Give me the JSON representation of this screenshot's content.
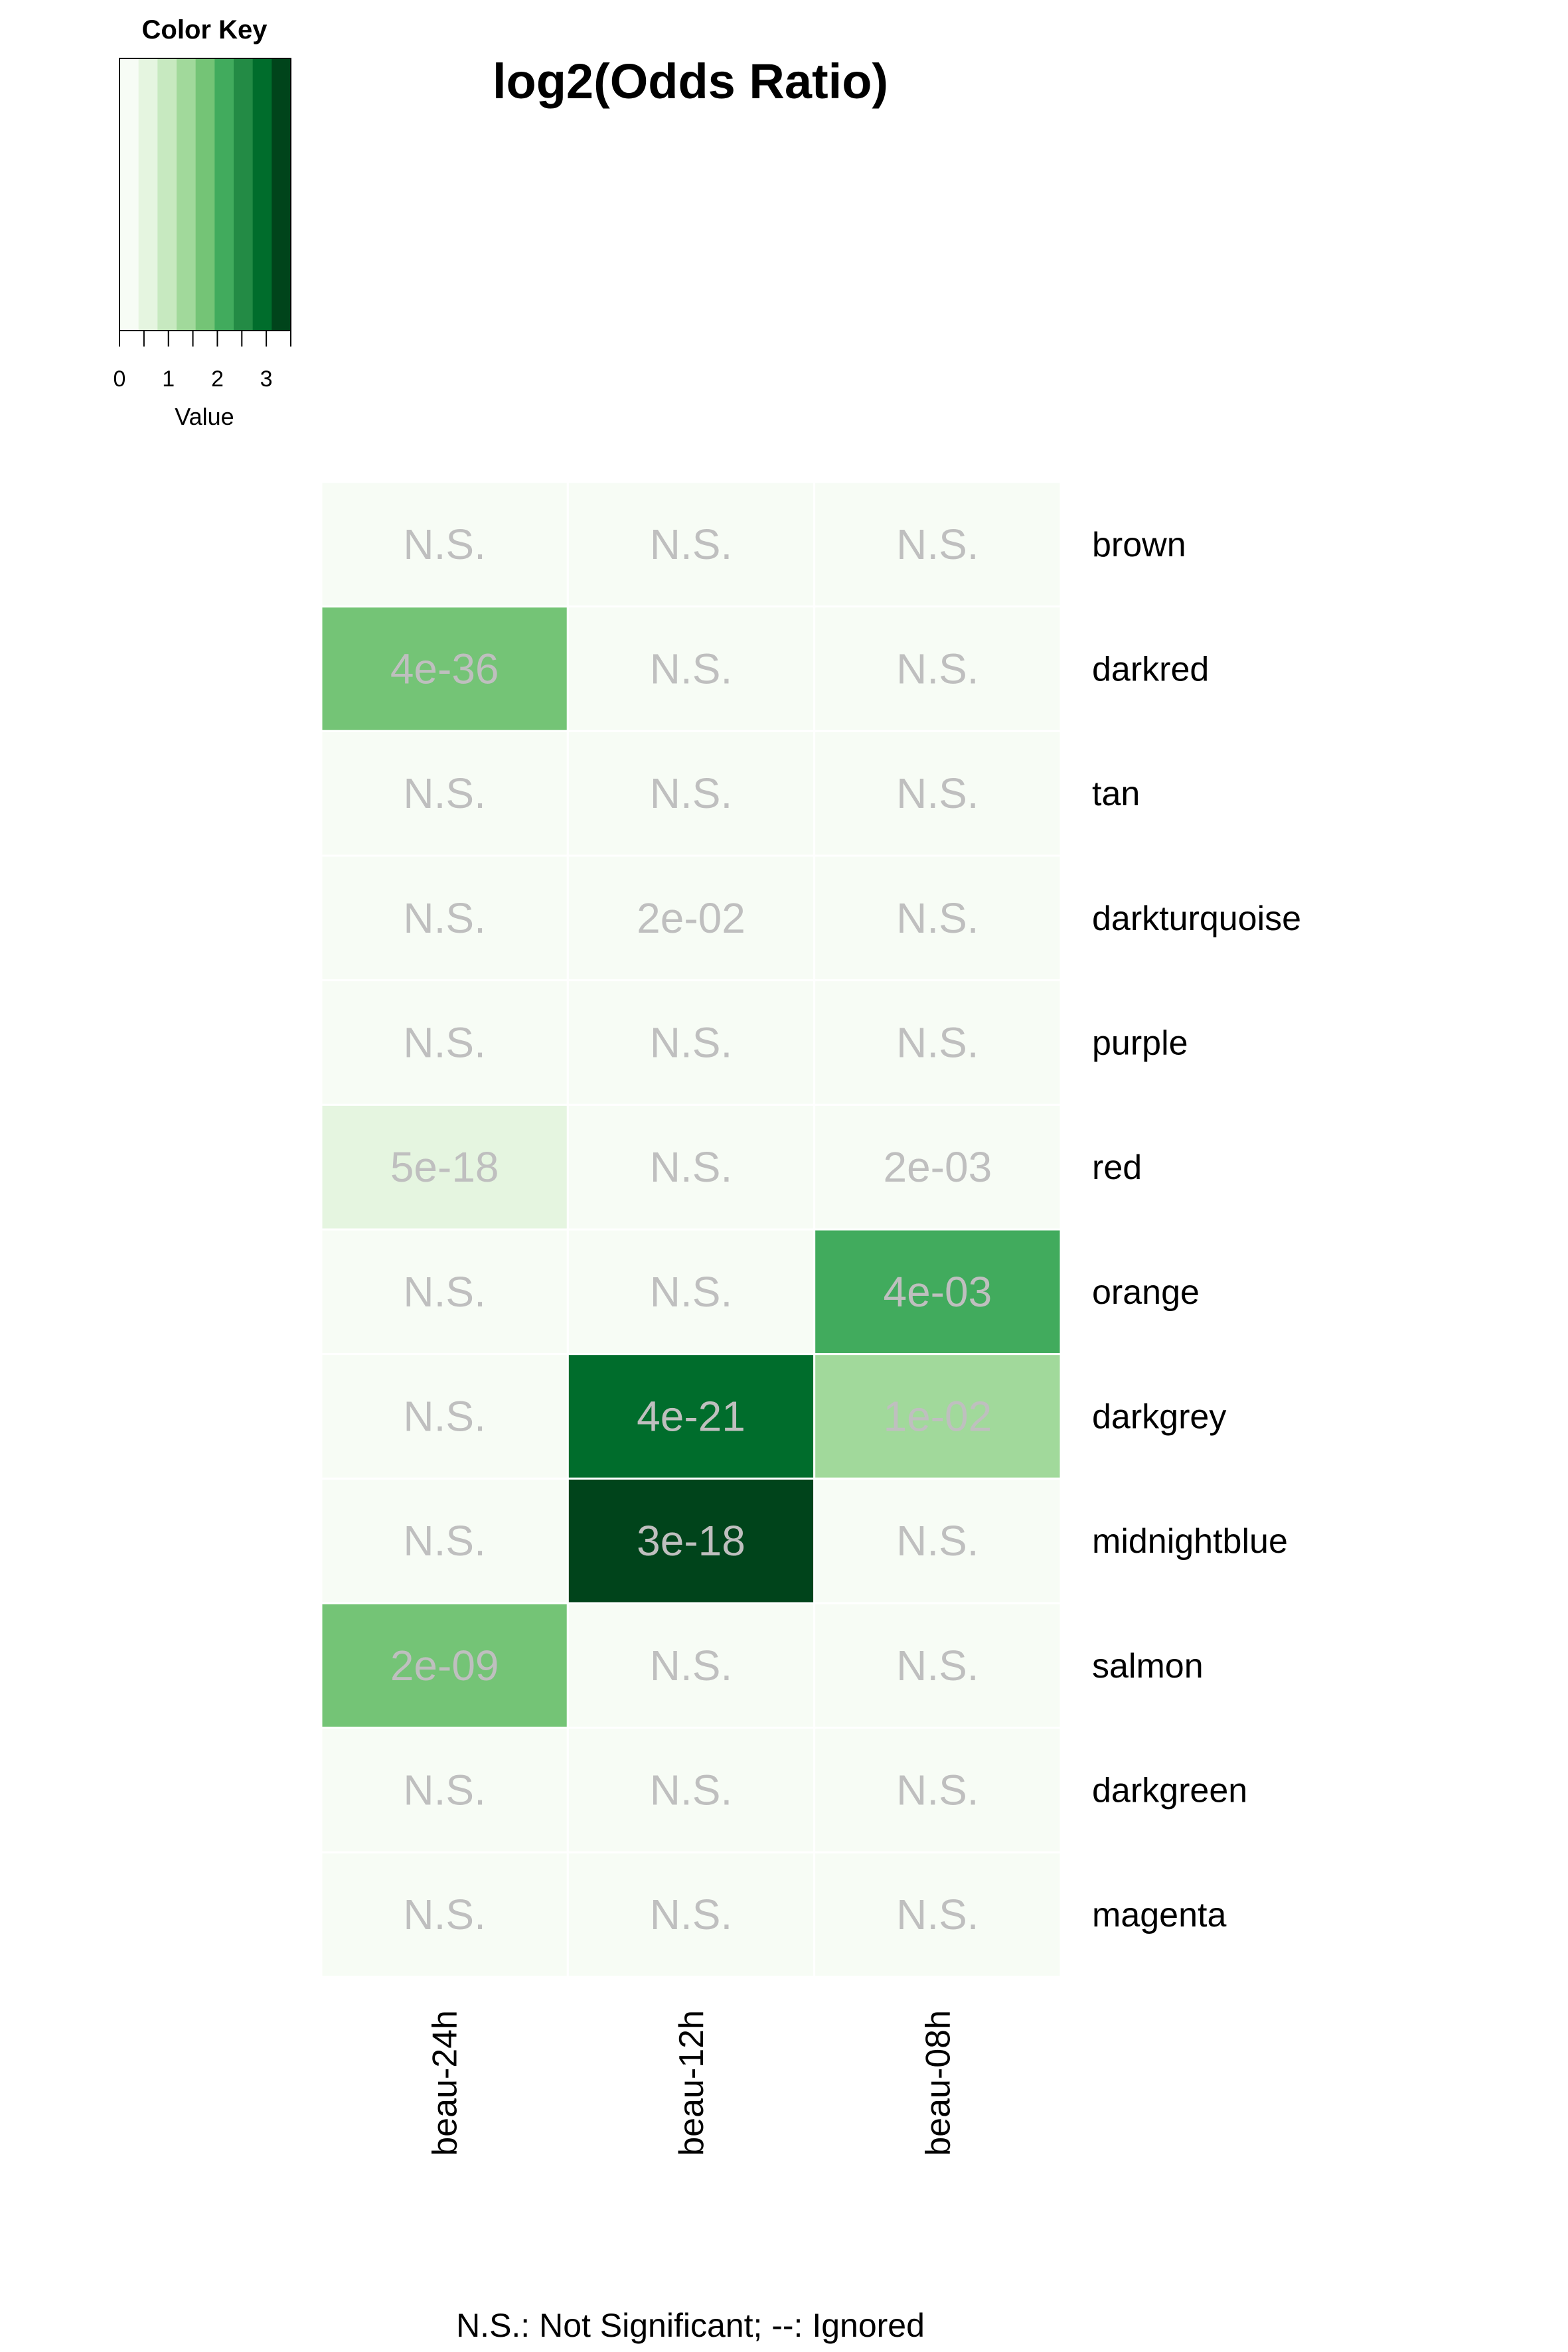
{
  "chart_data": {
    "type": "heatmap",
    "title": "log2(Odds Ratio)",
    "color_key": {
      "title": "Color Key",
      "xlabel": "Value",
      "ticks": [
        0,
        1,
        2,
        3
      ],
      "range": [
        0,
        3.5
      ],
      "colors": [
        "#f7fcf5",
        "#e5f5e0",
        "#c7e9c0",
        "#a1d99b",
        "#74c476",
        "#41ab5d",
        "#238b45",
        "#006d2c",
        "#00441b"
      ]
    },
    "columns": [
      "beau-24h",
      "beau-12h",
      "beau-08h"
    ],
    "rows": [
      "brown",
      "darkred",
      "tan",
      "darkturquoise",
      "purple",
      "red",
      "orange",
      "darkgrey",
      "midnightblue",
      "salmon",
      "darkgreen",
      "magenta"
    ],
    "values": [
      [
        0,
        0,
        0
      ],
      [
        1.6,
        0,
        0
      ],
      [
        0,
        0,
        0
      ],
      [
        0,
        0.3,
        0
      ],
      [
        0,
        0,
        0
      ],
      [
        0.6,
        0,
        0.3
      ],
      [
        0,
        0,
        2.1
      ],
      [
        0,
        2.8,
        1.2
      ],
      [
        0,
        3.4,
        0
      ],
      [
        1.6,
        0,
        0
      ],
      [
        0,
        0,
        0
      ],
      [
        0,
        0,
        0
      ]
    ],
    "cell_labels": [
      [
        "N.S.",
        "N.S.",
        "N.S."
      ],
      [
        "4e-36",
        "N.S.",
        "N.S."
      ],
      [
        "N.S.",
        "N.S.",
        "N.S."
      ],
      [
        "N.S.",
        "2e-02",
        "N.S."
      ],
      [
        "N.S.",
        "N.S.",
        "N.S."
      ],
      [
        "5e-18",
        "N.S.",
        "2e-03"
      ],
      [
        "N.S.",
        "N.S.",
        "4e-03"
      ],
      [
        "N.S.",
        "4e-21",
        "1e-02"
      ],
      [
        "N.S.",
        "3e-18",
        "N.S."
      ],
      [
        "2e-09",
        "N.S.",
        "N.S."
      ],
      [
        "N.S.",
        "N.S.",
        "N.S."
      ],
      [
        "N.S.",
        "N.S.",
        "N.S."
      ]
    ],
    "footnote": "N.S.: Not Significant; --: Ignored",
    "grid": true,
    "legend_position": "top-left"
  }
}
